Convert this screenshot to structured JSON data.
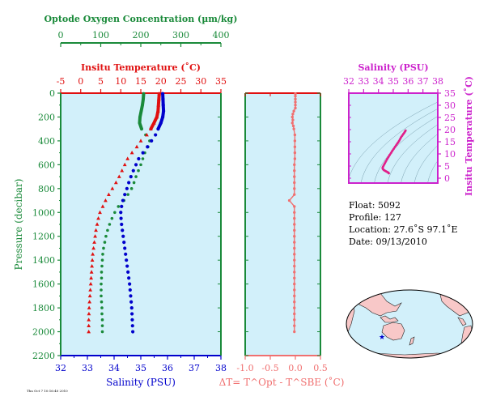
{
  "colors": {
    "oxygen": "#1a8a3a",
    "temperature": "#e01010",
    "salinity": "#0000cc",
    "pressure_axis": "#1a8a3a",
    "panel_bg": "#d2f0fa",
    "delta": "#f07070",
    "inset": "#cc22cc",
    "ts_points": "#e0208a"
  },
  "chart_data": [
    {
      "type": "line",
      "title": "",
      "ylabel": "Pressure (decibar)",
      "ylim": [
        0,
        2200
      ],
      "yticks": [
        "0",
        "200",
        "400",
        "600",
        "800",
        "1000",
        "1200",
        "1400",
        "1600",
        "1800",
        "2000",
        "2200"
      ],
      "axes": {
        "oxygen": {
          "label": "Optode Oxygen Concentration (µm/kg)",
          "range": [
            0,
            400
          ],
          "ticks": [
            "0",
            "100",
            "200",
            "300",
            "400"
          ]
        },
        "temperature": {
          "label": "Insitu Temperature (˚C)",
          "range": [
            -5,
            35
          ],
          "ticks": [
            "-5",
            "0",
            "5",
            "10",
            "15",
            "20",
            "25",
            "30",
            "35"
          ]
        },
        "salinity": {
          "label": "Salinity (PSU)",
          "range": [
            32,
            38
          ],
          "ticks": [
            "32",
            "33",
            "34",
            "35",
            "36",
            "37",
            "38"
          ]
        }
      },
      "series": [
        {
          "name": "Optode Oxygen Concentration (µm/kg)",
          "axis": "oxygen",
          "values": [
            [
              207,
              5
            ],
            [
              206,
              50
            ],
            [
              204,
              100
            ],
            [
              201,
              150
            ],
            [
              198,
              200
            ],
            [
              197,
              250
            ],
            [
              202,
              300
            ],
            [
              212,
              350
            ],
            [
              222,
              400
            ],
            [
              218,
              450
            ],
            [
              210,
              500
            ],
            [
              205,
              550
            ],
            [
              200,
              600
            ],
            [
              194,
              650
            ],
            [
              188,
              700
            ],
            [
              183,
              750
            ],
            [
              177,
              800
            ],
            [
              168,
              850
            ],
            [
              158,
              900
            ],
            [
              144,
              950
            ],
            [
              135,
              1000
            ],
            [
              128,
              1050
            ],
            [
              122,
              1100
            ],
            [
              117,
              1150
            ],
            [
              113,
              1200
            ],
            [
              110,
              1250
            ],
            [
              107,
              1300
            ],
            [
              105,
              1350
            ],
            [
              104,
              1400
            ],
            [
              103,
              1450
            ],
            [
              102,
              1500
            ],
            [
              102,
              1550
            ],
            [
              101,
              1600
            ],
            [
              101,
              1650
            ],
            [
              101,
              1700
            ],
            [
              102,
              1750
            ],
            [
              103,
              1800
            ],
            [
              103,
              1850
            ],
            [
              104,
              1900
            ],
            [
              104,
              1950
            ],
            [
              104,
              2000
            ]
          ]
        },
        {
          "name": "Insitu Temperature (˚C)",
          "axis": "temperature",
          "values": [
            [
              19.6,
              5
            ],
            [
              19.5,
              50
            ],
            [
              19.4,
              100
            ],
            [
              19.3,
              150
            ],
            [
              19.0,
              200
            ],
            [
              18.3,
              250
            ],
            [
              17.5,
              300
            ],
            [
              16.5,
              350
            ],
            [
              15.0,
              400
            ],
            [
              14.0,
              450
            ],
            [
              12.8,
              500
            ],
            [
              11.7,
              550
            ],
            [
              11.0,
              600
            ],
            [
              10.3,
              650
            ],
            [
              9.6,
              700
            ],
            [
              8.8,
              750
            ],
            [
              7.9,
              800
            ],
            [
              7.0,
              850
            ],
            [
              6.2,
              900
            ],
            [
              5.5,
              950
            ],
            [
              4.8,
              1000
            ],
            [
              4.4,
              1050
            ],
            [
              4.1,
              1100
            ],
            [
              3.8,
              1150
            ],
            [
              3.6,
              1200
            ],
            [
              3.4,
              1250
            ],
            [
              3.2,
              1300
            ],
            [
              3.0,
              1350
            ],
            [
              2.9,
              1400
            ],
            [
              2.8,
              1450
            ],
            [
              2.7,
              1500
            ],
            [
              2.6,
              1550
            ],
            [
              2.5,
              1600
            ],
            [
              2.4,
              1650
            ],
            [
              2.3,
              1700
            ],
            [
              2.2,
              1750
            ],
            [
              2.1,
              1800
            ],
            [
              2.05,
              1850
            ],
            [
              2.0,
              1900
            ],
            [
              2.0,
              1950
            ],
            [
              2.0,
              2000
            ]
          ]
        },
        {
          "name": "Salinity (PSU)",
          "axis": "salinity",
          "values": [
            [
              35.82,
              5
            ],
            [
              35.83,
              50
            ],
            [
              35.84,
              100
            ],
            [
              35.85,
              150
            ],
            [
              35.82,
              200
            ],
            [
              35.75,
              250
            ],
            [
              35.65,
              300
            ],
            [
              35.55,
              350
            ],
            [
              35.4,
              400
            ],
            [
              35.25,
              450
            ],
            [
              35.08,
              500
            ],
            [
              34.92,
              550
            ],
            [
              34.82,
              600
            ],
            [
              34.72,
              650
            ],
            [
              34.63,
              700
            ],
            [
              34.55,
              750
            ],
            [
              34.48,
              800
            ],
            [
              34.4,
              850
            ],
            [
              34.33,
              900
            ],
            [
              34.28,
              950
            ],
            [
              34.25,
              1000
            ],
            [
              34.26,
              1050
            ],
            [
              34.28,
              1100
            ],
            [
              34.31,
              1150
            ],
            [
              34.34,
              1200
            ],
            [
              34.37,
              1250
            ],
            [
              34.4,
              1300
            ],
            [
              34.43,
              1350
            ],
            [
              34.46,
              1400
            ],
            [
              34.49,
              1450
            ],
            [
              34.52,
              1500
            ],
            [
              34.55,
              1550
            ],
            [
              34.58,
              1600
            ],
            [
              34.6,
              1650
            ],
            [
              34.62,
              1700
            ],
            [
              34.64,
              1750
            ],
            [
              34.66,
              1800
            ],
            [
              34.67,
              1850
            ],
            [
              34.68,
              1900
            ],
            [
              34.69,
              1950
            ],
            [
              34.7,
              2000
            ]
          ]
        }
      ]
    },
    {
      "type": "scatter",
      "title": "",
      "xlabel": "ΔT= T^Opt - T^SBE (˚C)",
      "xlim": [
        -1.0,
        0.5
      ],
      "xticks": [
        "-1.0",
        "-0.5",
        "0.0",
        "0.5"
      ],
      "ylim": [
        0,
        2200
      ],
      "values": [
        [
          0.0,
          5
        ],
        [
          0.0,
          25
        ],
        [
          0.0,
          50
        ],
        [
          0.0,
          75
        ],
        [
          0.0,
          100
        ],
        [
          0.0,
          125
        ],
        [
          -0.03,
          150
        ],
        [
          -0.05,
          175
        ],
        [
          -0.06,
          200
        ],
        [
          -0.05,
          225
        ],
        [
          -0.06,
          250
        ],
        [
          -0.04,
          275
        ],
        [
          -0.03,
          300
        ],
        [
          -0.01,
          350
        ],
        [
          -0.01,
          400
        ],
        [
          -0.01,
          450
        ],
        [
          -0.01,
          500
        ],
        [
          -0.01,
          550
        ],
        [
          -0.02,
          600
        ],
        [
          -0.02,
          650
        ],
        [
          -0.02,
          700
        ],
        [
          -0.02,
          750
        ],
        [
          -0.02,
          800
        ],
        [
          -0.02,
          850
        ],
        [
          -0.12,
          900
        ],
        [
          -0.02,
          950
        ],
        [
          -0.02,
          1000
        ],
        [
          -0.02,
          1050
        ],
        [
          -0.02,
          1100
        ],
        [
          -0.02,
          1150
        ],
        [
          -0.02,
          1200
        ],
        [
          -0.02,
          1250
        ],
        [
          -0.02,
          1300
        ],
        [
          -0.02,
          1350
        ],
        [
          -0.02,
          1400
        ],
        [
          -0.02,
          1450
        ],
        [
          -0.02,
          1500
        ],
        [
          -0.02,
          1550
        ],
        [
          -0.02,
          1600
        ],
        [
          -0.02,
          1650
        ],
        [
          -0.02,
          1700
        ],
        [
          -0.02,
          1750
        ],
        [
          -0.02,
          1800
        ],
        [
          -0.02,
          1850
        ],
        [
          -0.02,
          1900
        ],
        [
          -0.02,
          1950
        ],
        [
          -0.02,
          2000
        ]
      ]
    },
    {
      "type": "scatter",
      "title": "",
      "xlabel": "Salinity (PSU)",
      "ylabel": "Insitu Temperature (˚C)",
      "xlim": [
        32,
        38
      ],
      "ylim": [
        -2,
        35
      ],
      "xticks": [
        "32",
        "33",
        "34",
        "35",
        "36",
        "37",
        "38"
      ],
      "yticks": [
        "0",
        "5",
        "10",
        "15",
        "20",
        "25",
        "30",
        "35"
      ],
      "values": [
        [
          35.83,
          19.6
        ],
        [
          35.8,
          19.3
        ],
        [
          35.75,
          18.8
        ],
        [
          35.68,
          18.2
        ],
        [
          35.6,
          17.5
        ],
        [
          35.52,
          16.8
        ],
        [
          35.45,
          16.0
        ],
        [
          35.38,
          15.2
        ],
        [
          35.3,
          14.5
        ],
        [
          35.22,
          13.8
        ],
        [
          35.12,
          12.9
        ],
        [
          35.02,
          12.0
        ],
        [
          34.93,
          11.2
        ],
        [
          34.85,
          10.4
        ],
        [
          34.76,
          9.6
        ],
        [
          34.67,
          8.7
        ],
        [
          34.58,
          7.8
        ],
        [
          34.5,
          6.9
        ],
        [
          34.42,
          6.0
        ],
        [
          34.35,
          5.2
        ],
        [
          34.3,
          4.6
        ],
        [
          34.28,
          4.2
        ],
        [
          34.3,
          3.8
        ],
        [
          34.34,
          3.5
        ],
        [
          34.4,
          3.2
        ],
        [
          34.46,
          3.0
        ],
        [
          34.52,
          2.8
        ],
        [
          34.58,
          2.6
        ],
        [
          34.64,
          2.4
        ],
        [
          34.68,
          2.2
        ],
        [
          34.7,
          2.0
        ]
      ]
    }
  ],
  "info": {
    "float": "Float:  5092",
    "profile": "Profile:  127",
    "location": "Location:  27.6˚S  97.1˚E",
    "date": "Date:  09/13/2010"
  },
  "map": {
    "marker": "★"
  },
  "footer": {
    "stamp": "Thu Oct 7 10:16:40 2010"
  }
}
